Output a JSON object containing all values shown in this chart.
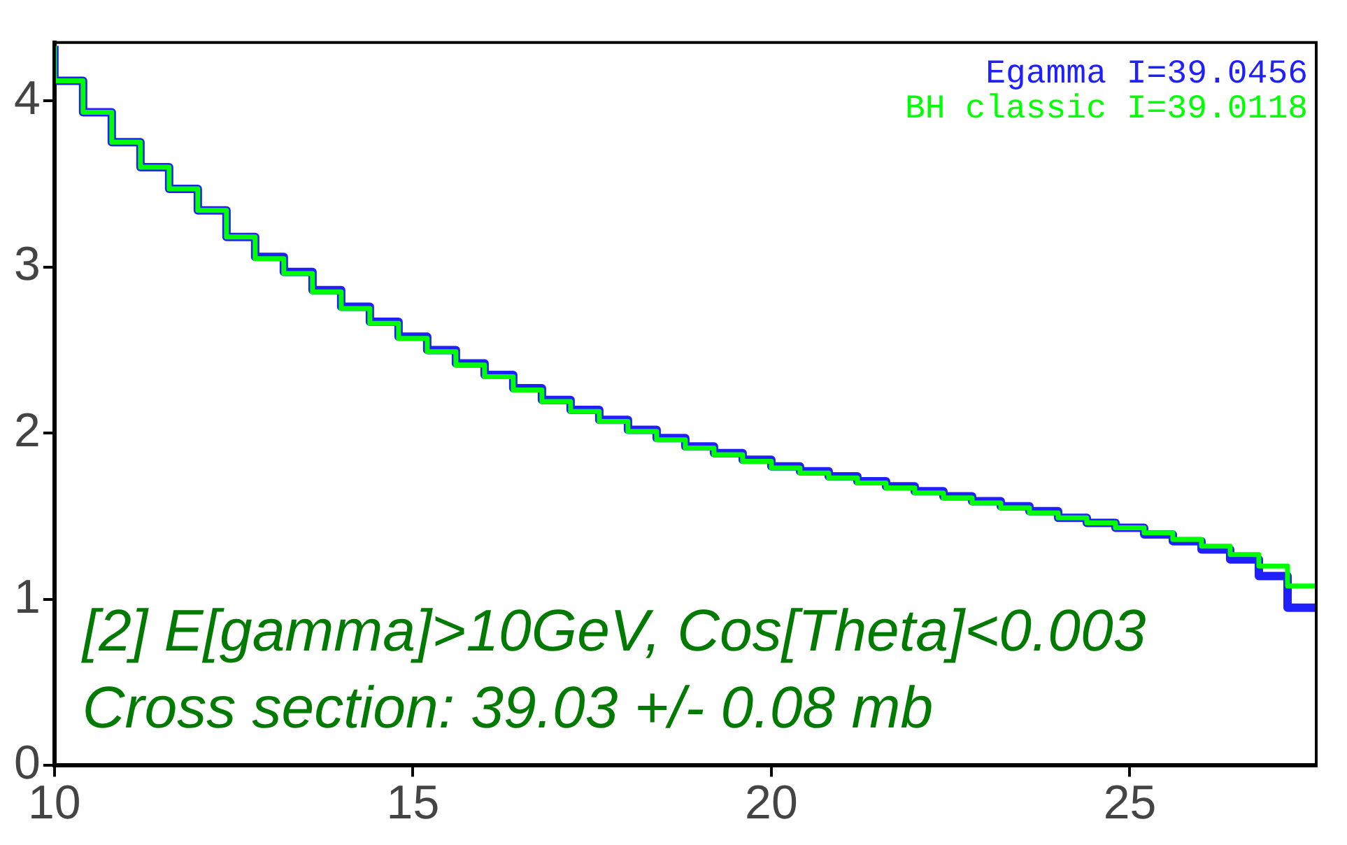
{
  "chart_data": {
    "type": "step",
    "x": [
      10.0,
      10.4,
      10.8,
      11.2,
      11.6,
      12.0,
      12.4,
      12.8,
      13.2,
      13.6,
      14.0,
      14.4,
      14.8,
      15.2,
      15.6,
      16.0,
      16.4,
      16.8,
      17.2,
      17.6,
      18.0,
      18.4,
      18.8,
      19.2,
      19.6,
      20.0,
      20.4,
      20.8,
      21.2,
      21.6,
      22.0,
      22.4,
      22.8,
      23.2,
      23.6,
      24.0,
      24.4,
      24.8,
      25.2,
      25.6,
      26.0,
      26.4,
      26.8,
      27.2,
      27.4,
      27.6
    ],
    "series": [
      {
        "name": "Egamma I=39.0456",
        "color": "#2020ff",
        "values": [
          4.33,
          4.12,
          3.93,
          3.75,
          3.6,
          3.47,
          3.34,
          3.18,
          3.06,
          2.97,
          2.86,
          2.76,
          2.67,
          2.58,
          2.5,
          2.42,
          2.35,
          2.27,
          2.2,
          2.14,
          2.08,
          2.02,
          1.97,
          1.92,
          1.88,
          1.84,
          1.8,
          1.77,
          1.74,
          1.71,
          1.68,
          1.65,
          1.62,
          1.59,
          1.56,
          1.53,
          1.49,
          1.46,
          1.43,
          1.39,
          1.35,
          1.3,
          1.24,
          1.14,
          0.95,
          0.95
        ]
      },
      {
        "name": "BH classic I=39.0118",
        "color": "#00ff00",
        "values": [
          4.33,
          4.12,
          3.93,
          3.75,
          3.6,
          3.47,
          3.34,
          3.18,
          3.05,
          2.96,
          2.85,
          2.75,
          2.66,
          2.57,
          2.49,
          2.41,
          2.34,
          2.26,
          2.19,
          2.13,
          2.07,
          2.01,
          1.96,
          1.91,
          1.87,
          1.83,
          1.79,
          1.76,
          1.73,
          1.7,
          1.67,
          1.64,
          1.61,
          1.58,
          1.55,
          1.52,
          1.49,
          1.46,
          1.43,
          1.4,
          1.36,
          1.32,
          1.27,
          1.2,
          1.08,
          1.08
        ]
      }
    ],
    "xlim": [
      10,
      27.6
    ],
    "xticks": [
      10,
      15,
      20,
      25
    ],
    "ylim": [
      0,
      4.35
    ],
    "yticks": [
      0,
      1,
      2,
      3,
      4
    ],
    "grid": false,
    "legend": "top right",
    "annotations": [
      "[2] E[gamma]>10GeV, Cos[Theta]<0.003",
      "Cross section: 39.03 +/- 0.08 mb"
    ]
  }
}
